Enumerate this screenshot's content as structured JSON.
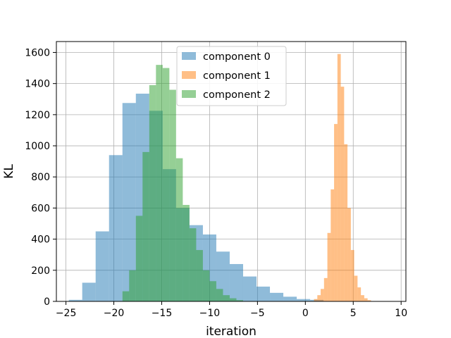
{
  "chart_data": {
    "type": "bar",
    "xlabel": "iteration",
    "ylabel": "KL",
    "xlim": [
      -26,
      10.5
    ],
    "ylim": [
      0,
      1670
    ],
    "xticks": [
      -25,
      -20,
      -15,
      -10,
      -5,
      0,
      5,
      10
    ],
    "yticks": [
      0,
      200,
      400,
      600,
      800,
      1000,
      1200,
      1400,
      1600
    ],
    "grid": true,
    "legend_position": "top-center",
    "series": [
      {
        "name": "component 0",
        "color": "#1f77b4",
        "alpha": 0.5,
        "bins": [
          {
            "x0": -24.7,
            "x1": -23.3,
            "value": 10
          },
          {
            "x0": -23.3,
            "x1": -21.9,
            "value": 120
          },
          {
            "x0": -21.9,
            "x1": -20.5,
            "value": 450
          },
          {
            "x0": -20.5,
            "x1": -19.1,
            "value": 940
          },
          {
            "x0": -19.1,
            "x1": -17.7,
            "value": 1275
          },
          {
            "x0": -17.7,
            "x1": -16.3,
            "value": 1335
          },
          {
            "x0": -16.3,
            "x1": -14.9,
            "value": 1225
          },
          {
            "x0": -14.9,
            "x1": -13.5,
            "value": 850
          },
          {
            "x0": -13.5,
            "x1": -12.1,
            "value": 600
          },
          {
            "x0": -12.1,
            "x1": -10.7,
            "value": 490
          },
          {
            "x0": -10.7,
            "x1": -9.3,
            "value": 430
          },
          {
            "x0": -9.3,
            "x1": -7.9,
            "value": 320
          },
          {
            "x0": -7.9,
            "x1": -6.5,
            "value": 240
          },
          {
            "x0": -6.5,
            "x1": -5.1,
            "value": 160
          },
          {
            "x0": -5.1,
            "x1": -3.7,
            "value": 95
          },
          {
            "x0": -3.7,
            "x1": -2.3,
            "value": 55
          },
          {
            "x0": -2.3,
            "x1": -0.9,
            "value": 30
          },
          {
            "x0": -0.9,
            "x1": 0.5,
            "value": 15
          },
          {
            "x0": 0.5,
            "x1": 1.9,
            "value": 10
          }
        ]
      },
      {
        "name": "component 1",
        "color": "#ff7f0e",
        "alpha": 0.5,
        "bins": [
          {
            "x0": 0.9,
            "x1": 1.25,
            "value": 15
          },
          {
            "x0": 1.25,
            "x1": 1.6,
            "value": 40
          },
          {
            "x0": 1.6,
            "x1": 1.95,
            "value": 80
          },
          {
            "x0": 1.95,
            "x1": 2.3,
            "value": 150
          },
          {
            "x0": 2.3,
            "x1": 2.65,
            "value": 440
          },
          {
            "x0": 2.65,
            "x1": 3.0,
            "value": 720
          },
          {
            "x0": 3.0,
            "x1": 3.35,
            "value": 1140
          },
          {
            "x0": 3.35,
            "x1": 3.7,
            "value": 1590
          },
          {
            "x0": 3.7,
            "x1": 4.05,
            "value": 1380
          },
          {
            "x0": 4.05,
            "x1": 4.4,
            "value": 1010
          },
          {
            "x0": 4.4,
            "x1": 4.75,
            "value": 600
          },
          {
            "x0": 4.75,
            "x1": 5.1,
            "value": 330
          },
          {
            "x0": 5.1,
            "x1": 5.45,
            "value": 165
          },
          {
            "x0": 5.45,
            "x1": 5.8,
            "value": 90
          },
          {
            "x0": 5.8,
            "x1": 6.15,
            "value": 40
          },
          {
            "x0": 6.15,
            "x1": 6.5,
            "value": 20
          },
          {
            "x0": 6.5,
            "x1": 6.85,
            "value": 8
          }
        ]
      },
      {
        "name": "component 2",
        "color": "#2ca02c",
        "alpha": 0.5,
        "bins": [
          {
            "x0": -19.1,
            "x1": -18.4,
            "value": 65
          },
          {
            "x0": -18.4,
            "x1": -17.7,
            "value": 200
          },
          {
            "x0": -17.7,
            "x1": -17.0,
            "value": 550
          },
          {
            "x0": -17.0,
            "x1": -16.3,
            "value": 960
          },
          {
            "x0": -16.3,
            "x1": -15.6,
            "value": 1390
          },
          {
            "x0": -15.6,
            "x1": -14.9,
            "value": 1520
          },
          {
            "x0": -14.9,
            "x1": -14.2,
            "value": 1500
          },
          {
            "x0": -14.2,
            "x1": -13.5,
            "value": 1360
          },
          {
            "x0": -13.5,
            "x1": -12.8,
            "value": 920
          },
          {
            "x0": -12.8,
            "x1": -12.1,
            "value": 620
          },
          {
            "x0": -12.1,
            "x1": -11.4,
            "value": 470
          },
          {
            "x0": -11.4,
            "x1": -10.7,
            "value": 330
          },
          {
            "x0": -10.7,
            "x1": -10.0,
            "value": 200
          },
          {
            "x0": -10.0,
            "x1": -9.3,
            "value": 130
          },
          {
            "x0": -9.3,
            "x1": -8.6,
            "value": 80
          },
          {
            "x0": -8.6,
            "x1": -7.9,
            "value": 40
          },
          {
            "x0": -7.9,
            "x1": -7.2,
            "value": 20
          },
          {
            "x0": -7.2,
            "x1": -6.5,
            "value": 8
          }
        ]
      }
    ]
  }
}
